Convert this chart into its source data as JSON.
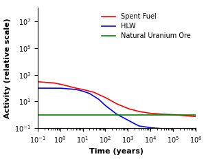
{
  "title": "",
  "xlabel": "Time (years)",
  "ylabel": "Activity (relative scale)",
  "xlim": [
    0.1,
    1000000.0
  ],
  "ylim": [
    0.1,
    100000000.0
  ],
  "natural_uranium_y": 1.0,
  "spent_fuel": {
    "color": "#ff0000",
    "label": "Spent Fuel"
  },
  "hlw": {
    "color": "#0000ff",
    "label": "HLW"
  },
  "natural_uranium": {
    "color": "#008000",
    "label": "Natural Uranium Ore"
  },
  "background_color": "#ffffff",
  "legend_fontsize": 7,
  "axis_label_fontsize": 8,
  "tick_fontsize": 7,
  "sf_t_pts": [
    0.1,
    0.5,
    1,
    2,
    5,
    10,
    30,
    100,
    300,
    1000,
    3000,
    10000,
    30000,
    100000,
    300000,
    1000000
  ],
  "sf_v_pts": [
    300.0,
    250.0,
    200.0,
    150.0,
    100.0,
    80.0,
    50.0,
    20.0,
    7,
    3,
    1.8,
    1.3,
    1.15,
    1.05,
    0.9,
    0.75
  ],
  "hlw_t_pts": [
    0.1,
    0.5,
    1,
    2,
    5,
    10,
    20,
    50,
    100,
    300,
    1000,
    3000,
    10000,
    30000
  ],
  "hlw_v_pts": [
    100.0,
    100.0,
    100.0,
    90.0,
    80.0,
    60.0,
    40.0,
    15.0,
    5,
    1.2,
    0.4,
    0.15,
    0.11,
    0.095
  ]
}
